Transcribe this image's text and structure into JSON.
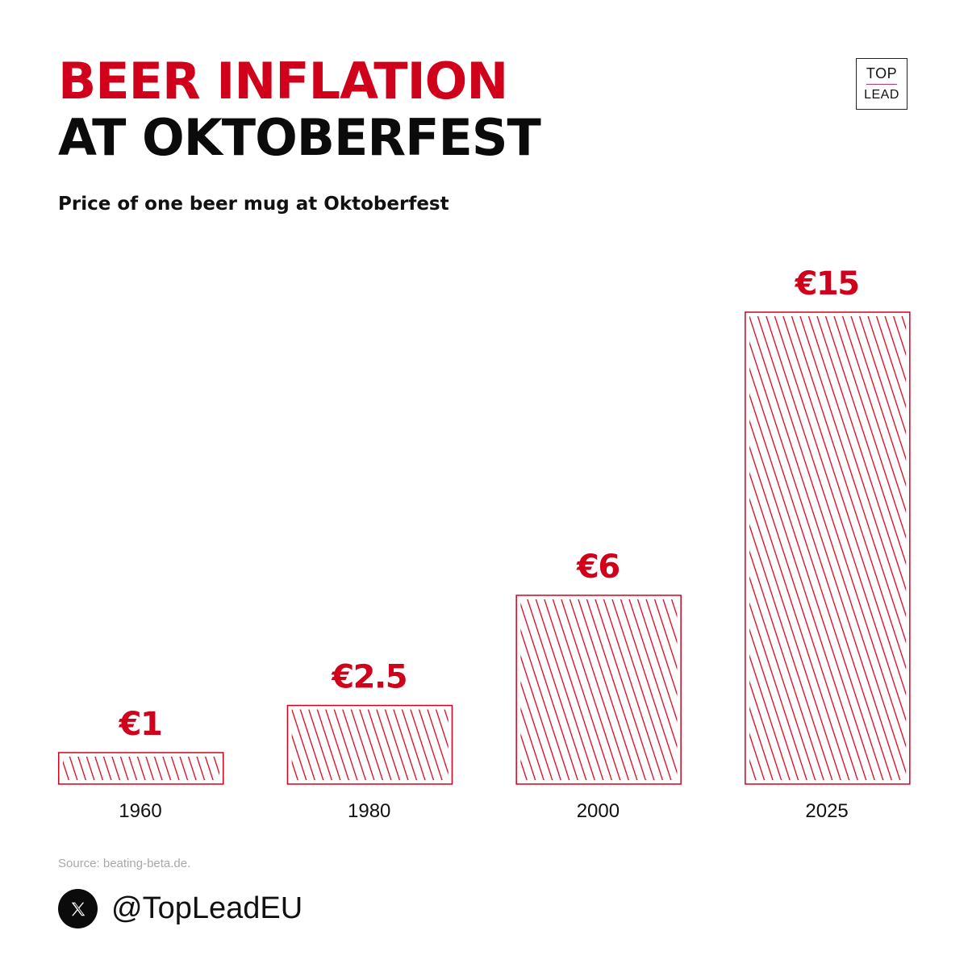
{
  "header": {
    "title_line1": "BEER INFLATION",
    "title_line2": "AT OKTOBERFEST",
    "subtitle": "Price of one beer mug at Oktoberfest"
  },
  "logo": {
    "line1": "TOP",
    "line2": "LEAD"
  },
  "chart_data": {
    "type": "bar",
    "title": "BEER INFLATION AT OKTOBERFEST",
    "subtitle": "Price of one beer mug at Oktoberfest",
    "xlabel": "",
    "ylabel": "",
    "categories": [
      "1960",
      "1980",
      "2000",
      "2025"
    ],
    "values": [
      1,
      2.5,
      6,
      15
    ],
    "value_labels": [
      "€1",
      "€2.5",
      "€6",
      "€15"
    ],
    "ylim": [
      0,
      15
    ],
    "grid": false,
    "bar_style": "hatched",
    "colors": {
      "bar": "#d0021b",
      "text": "#111111"
    }
  },
  "footer": {
    "source": "Source: beating-beta.de.",
    "social_icon": "x-logo-icon",
    "handle": "@TopLeadEU"
  }
}
